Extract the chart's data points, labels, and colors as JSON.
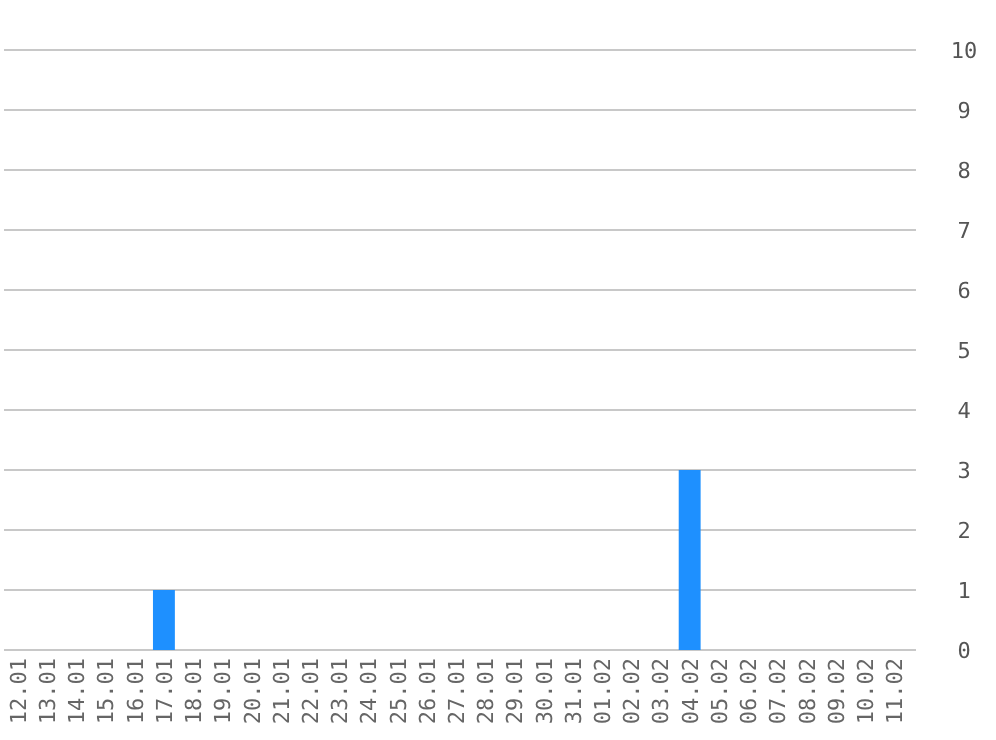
{
  "chart_data": {
    "type": "bar",
    "categories": [
      "12.01",
      "13.01",
      "14.01",
      "15.01",
      "16.01",
      "17.01",
      "18.01",
      "19.01",
      "20.01",
      "21.01",
      "22.01",
      "23.01",
      "24.01",
      "25.01",
      "26.01",
      "27.01",
      "28.01",
      "29.01",
      "30.01",
      "31.01",
      "01.02",
      "02.02",
      "03.02",
      "04.02",
      "05.02",
      "06.02",
      "07.02",
      "08.02",
      "09.02",
      "10.02",
      "11.02"
    ],
    "values": [
      0,
      0,
      0,
      0,
      0,
      1,
      0,
      0,
      0,
      0,
      0,
      0,
      0,
      0,
      0,
      0,
      0,
      0,
      0,
      0,
      0,
      0,
      0,
      3,
      0,
      0,
      0,
      0,
      0,
      0,
      0
    ],
    "color": "#1e90ff",
    "ylim": [
      0,
      10
    ],
    "yticks": [
      0,
      1,
      2,
      3,
      4,
      5,
      6,
      7,
      8,
      9,
      10
    ],
    "grid": "y"
  }
}
